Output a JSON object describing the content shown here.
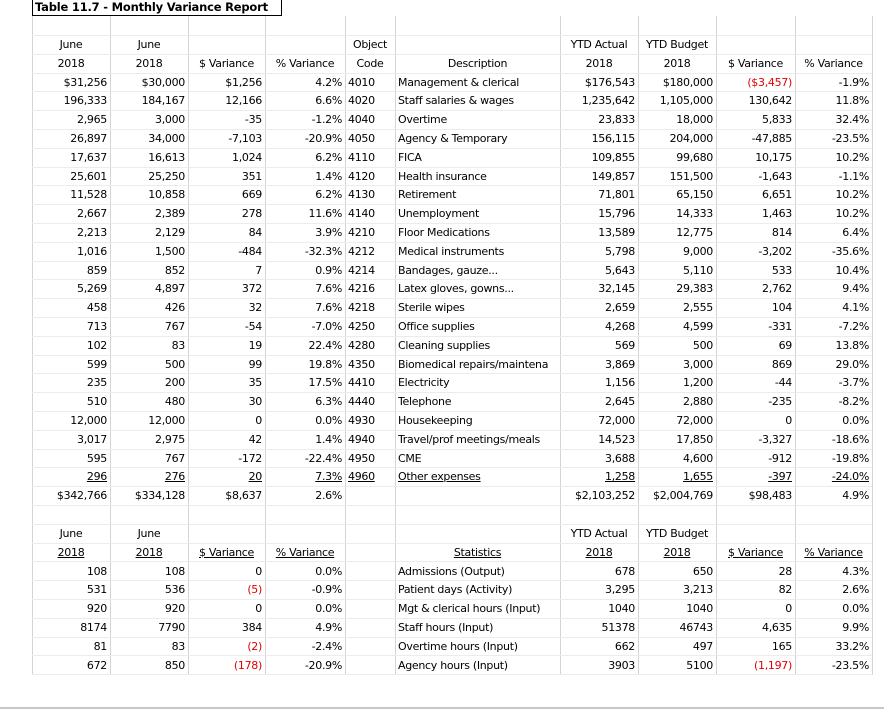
{
  "title": "Table 11.7 - Monthly Variance Report",
  "report": {
    "header": [
      [
        "June",
        "June",
        null,
        null,
        "Object",
        null,
        "YTD Actual",
        "YTD Budget",
        null,
        null
      ],
      [
        "2018",
        "2018",
        "$ Variance",
        "% Variance",
        "Code",
        "Description",
        "2018",
        "2018",
        "$ Variance",
        "% Variance"
      ]
    ],
    "rows": [
      [
        "$31,256",
        "$30,000",
        "$1,256",
        "4.2%",
        "4010",
        "Management & clerical",
        "$176,543",
        "$180,000",
        "($3,457)",
        "-1.9%"
      ],
      [
        "196,333",
        "184,167",
        "12,166",
        "6.6%",
        "4020",
        "Staff salaries & wages",
        "1,235,642",
        "1,105,000",
        "130,642",
        "11.8%"
      ],
      [
        "2,965",
        "3,000",
        "-35",
        "-1.2%",
        "4040",
        "Overtime",
        "23,833",
        "18,000",
        "5,833",
        "32.4%"
      ],
      [
        "26,897",
        "34,000",
        "-7,103",
        "-20.9%",
        "4050",
        "Agency & Temporary",
        "156,115",
        "204,000",
        "-47,885",
        "-23.5%"
      ],
      [
        "17,637",
        "16,613",
        "1,024",
        "6.2%",
        "4110",
        "FICA",
        "109,855",
        "99,680",
        "10,175",
        "10.2%"
      ],
      [
        "25,601",
        "25,250",
        "351",
        "1.4%",
        "4120",
        "Health insurance",
        "149,857",
        "151,500",
        "-1,643",
        "-1.1%"
      ],
      [
        "11,528",
        "10,858",
        "669",
        "6.2%",
        "4130",
        "Retirement",
        "71,801",
        "65,150",
        "6,651",
        "10.2%"
      ],
      [
        "2,667",
        "2,389",
        "278",
        "11.6%",
        "4140",
        "Unemployment",
        "15,796",
        "14,333",
        "1,463",
        "10.2%"
      ],
      [
        "2,213",
        "2,129",
        "84",
        "3.9%",
        "4210",
        "Floor Medications",
        "13,589",
        "12,775",
        "814",
        "6.4%"
      ],
      [
        "1,016",
        "1,500",
        "-484",
        "-32.3%",
        "4212",
        "Medical instruments",
        "5,798",
        "9,000",
        "-3,202",
        "-35.6%"
      ],
      [
        "859",
        "852",
        "7",
        "0.9%",
        "4214",
        "Bandages, gauze...",
        "5,643",
        "5,110",
        "533",
        "10.4%"
      ],
      [
        "5,269",
        "4,897",
        "372",
        "7.6%",
        "4216",
        "Latex gloves, gowns...",
        "32,145",
        "29,383",
        "2,762",
        "9.4%"
      ],
      [
        "458",
        "426",
        "32",
        "7.6%",
        "4218",
        "Sterile wipes",
        "2,659",
        "2,555",
        "104",
        "4.1%"
      ],
      [
        "713",
        "767",
        "-54",
        "-7.0%",
        "4250",
        "Office supplies",
        "4,268",
        "4,599",
        "-331",
        "-7.2%"
      ],
      [
        "102",
        "83",
        "19",
        "22.4%",
        "4280",
        "Cleaning supplies",
        "569",
        "500",
        "69",
        "13.8%"
      ],
      [
        "599",
        "500",
        "99",
        "19.8%",
        "4350",
        "Biomedical repairs/maintena",
        "3,869",
        "3,000",
        "869",
        "29.0%"
      ],
      [
        "235",
        "200",
        "35",
        "17.5%",
        "4410",
        "Electricity",
        "1,156",
        "1,200",
        "-44",
        "-3.7%"
      ],
      [
        "510",
        "480",
        "30",
        "6.3%",
        "4440",
        "Telephone",
        "2,645",
        "2,880",
        "-235",
        "-8.2%"
      ],
      [
        "12,000",
        "12,000",
        "0",
        "0.0%",
        "4930",
        "Housekeeping",
        "72,000",
        "72,000",
        "0",
        "0.0%"
      ],
      [
        "3,017",
        "2,975",
        "42",
        "1.4%",
        "4940",
        "Travel/prof meetings/meals",
        "14,523",
        "17,850",
        "-3,327",
        "-18.6%"
      ],
      [
        "595",
        "767",
        "-172",
        "-22.4%",
        "4950",
        "CME",
        "3,688",
        "4,600",
        "-912",
        "-19.8%"
      ],
      [
        "296",
        "276",
        "20",
        "7.3%",
        "4960",
        "Other expenses",
        "1,258",
        "1,655",
        "-397",
        "-24.0%"
      ]
    ],
    "total": [
      "$342,766",
      "$334,128",
      "$8,637",
      "2.6%",
      null,
      null,
      "$2,103,252",
      "$2,004,769",
      "$98,483",
      "4.9%"
    ]
  },
  "statistics": {
    "header": [
      [
        "June",
        "June",
        null,
        null,
        null,
        null,
        "YTD Actual",
        "YTD Budget",
        null,
        null
      ],
      [
        "2018",
        "2018",
        "$ Variance",
        "% Variance",
        null,
        "Statistics",
        "2018",
        "2018",
        "$ Variance",
        "% Variance"
      ]
    ],
    "rows": [
      [
        "108",
        "108",
        "0",
        "0.0%",
        null,
        "Admissions (Output)",
        "678",
        "650",
        "28",
        "4.3%"
      ],
      [
        "531",
        "536",
        "(5)",
        "-0.9%",
        null,
        "Patient days (Activity)",
        "3,295",
        "3,213",
        "82",
        "2.6%"
      ],
      [
        "920",
        "920",
        "0",
        "0.0%",
        null,
        "Mgt & clerical hours (Input)",
        "1040",
        "1040",
        "0",
        "0.0%"
      ],
      [
        "8174",
        "7790",
        "384",
        "4.9%",
        null,
        "Staff hours (Input)",
        "51378",
        "46743",
        "4,635",
        "9.9%"
      ],
      [
        "81",
        "83",
        "(2)",
        "-2.4%",
        null,
        "Overtime hours (Input)",
        "662",
        "497",
        "165",
        "33.2%"
      ],
      [
        "672",
        "850",
        "(178)",
        "-20.9%",
        null,
        "Agency hours (Input)",
        "3903",
        "5100",
        "(1,197)",
        "-23.5%"
      ]
    ]
  }
}
